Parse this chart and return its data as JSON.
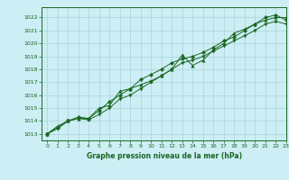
{
  "title": "Graphe pression niveau de la mer (hPa)",
  "background_color": "#cceef4",
  "grid_color": "#aad4dc",
  "line_color": "#1a6620",
  "xlim": [
    -0.5,
    23
  ],
  "ylim": [
    1012.5,
    1022.8
  ],
  "yticks": [
    1013,
    1014,
    1015,
    1016,
    1017,
    1018,
    1019,
    1020,
    1021,
    1022
  ],
  "xticks": [
    0,
    1,
    2,
    3,
    4,
    5,
    6,
    7,
    8,
    9,
    10,
    11,
    12,
    13,
    14,
    15,
    16,
    17,
    18,
    19,
    20,
    21,
    22,
    23
  ],
  "series": [
    [
      1013.0,
      1013.6,
      1014.0,
      1014.2,
      1014.2,
      1015.0,
      1015.2,
      1016.3,
      1016.5,
      1016.8,
      1017.1,
      1017.5,
      1018.0,
      1019.1,
      1018.3,
      1018.7,
      1019.5,
      1020.0,
      1020.8,
      1021.1,
      1021.5,
      1021.8,
      1022.0,
      1022.0
    ],
    [
      1013.0,
      1013.5,
      1014.0,
      1014.3,
      1014.2,
      1014.8,
      1015.5,
      1016.0,
      1016.5,
      1017.2,
      1017.6,
      1018.0,
      1018.5,
      1018.8,
      1019.0,
      1019.3,
      1019.7,
      1020.2,
      1020.5,
      1021.0,
      1021.5,
      1022.0,
      1022.2,
      1021.8
    ],
    [
      1013.0,
      1013.4,
      1014.0,
      1014.2,
      1014.1,
      1014.5,
      1015.0,
      1015.7,
      1016.0,
      1016.5,
      1017.0,
      1017.5,
      1018.0,
      1018.5,
      1018.7,
      1019.0,
      1019.4,
      1019.8,
      1020.2,
      1020.6,
      1021.0,
      1021.5,
      1021.7,
      1021.5
    ]
  ],
  "tick_fontsize": 4.5,
  "label_fontsize": 5.5,
  "marker_size": 2.5,
  "linewidth": 0.7
}
